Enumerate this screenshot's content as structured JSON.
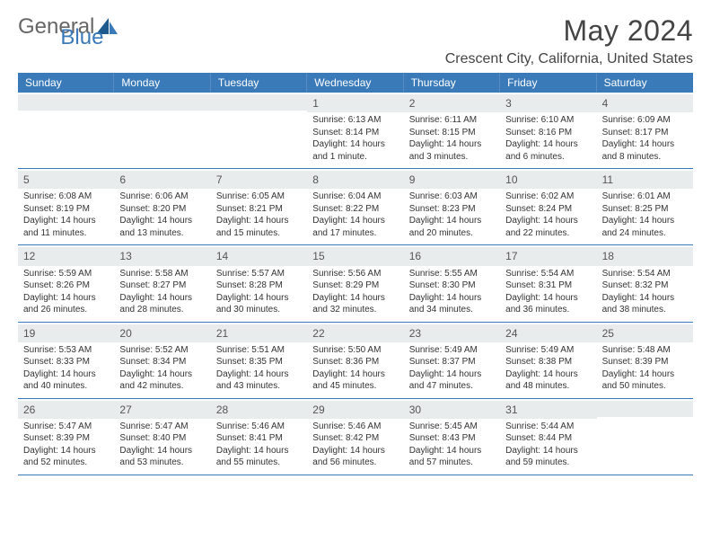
{
  "brand": {
    "part1": "General",
    "part2": "Blue"
  },
  "title": "May 2024",
  "location": "Crescent City, California, United States",
  "colors": {
    "header_bg": "#3a7ab8",
    "header_text": "#ffffff",
    "daynum_bg": "#e8eced",
    "text": "#333333",
    "border": "#3a7ab8"
  },
  "day_names": [
    "Sunday",
    "Monday",
    "Tuesday",
    "Wednesday",
    "Thursday",
    "Friday",
    "Saturday"
  ],
  "weeks": [
    [
      {
        "n": "",
        "sunrise": "",
        "sunset": "",
        "daylight": ""
      },
      {
        "n": "",
        "sunrise": "",
        "sunset": "",
        "daylight": ""
      },
      {
        "n": "",
        "sunrise": "",
        "sunset": "",
        "daylight": ""
      },
      {
        "n": "1",
        "sunrise": "Sunrise: 6:13 AM",
        "sunset": "Sunset: 8:14 PM",
        "daylight": "Daylight: 14 hours and 1 minute."
      },
      {
        "n": "2",
        "sunrise": "Sunrise: 6:11 AM",
        "sunset": "Sunset: 8:15 PM",
        "daylight": "Daylight: 14 hours and 3 minutes."
      },
      {
        "n": "3",
        "sunrise": "Sunrise: 6:10 AM",
        "sunset": "Sunset: 8:16 PM",
        "daylight": "Daylight: 14 hours and 6 minutes."
      },
      {
        "n": "4",
        "sunrise": "Sunrise: 6:09 AM",
        "sunset": "Sunset: 8:17 PM",
        "daylight": "Daylight: 14 hours and 8 minutes."
      }
    ],
    [
      {
        "n": "5",
        "sunrise": "Sunrise: 6:08 AM",
        "sunset": "Sunset: 8:19 PM",
        "daylight": "Daylight: 14 hours and 11 minutes."
      },
      {
        "n": "6",
        "sunrise": "Sunrise: 6:06 AM",
        "sunset": "Sunset: 8:20 PM",
        "daylight": "Daylight: 14 hours and 13 minutes."
      },
      {
        "n": "7",
        "sunrise": "Sunrise: 6:05 AM",
        "sunset": "Sunset: 8:21 PM",
        "daylight": "Daylight: 14 hours and 15 minutes."
      },
      {
        "n": "8",
        "sunrise": "Sunrise: 6:04 AM",
        "sunset": "Sunset: 8:22 PM",
        "daylight": "Daylight: 14 hours and 17 minutes."
      },
      {
        "n": "9",
        "sunrise": "Sunrise: 6:03 AM",
        "sunset": "Sunset: 8:23 PM",
        "daylight": "Daylight: 14 hours and 20 minutes."
      },
      {
        "n": "10",
        "sunrise": "Sunrise: 6:02 AM",
        "sunset": "Sunset: 8:24 PM",
        "daylight": "Daylight: 14 hours and 22 minutes."
      },
      {
        "n": "11",
        "sunrise": "Sunrise: 6:01 AM",
        "sunset": "Sunset: 8:25 PM",
        "daylight": "Daylight: 14 hours and 24 minutes."
      }
    ],
    [
      {
        "n": "12",
        "sunrise": "Sunrise: 5:59 AM",
        "sunset": "Sunset: 8:26 PM",
        "daylight": "Daylight: 14 hours and 26 minutes."
      },
      {
        "n": "13",
        "sunrise": "Sunrise: 5:58 AM",
        "sunset": "Sunset: 8:27 PM",
        "daylight": "Daylight: 14 hours and 28 minutes."
      },
      {
        "n": "14",
        "sunrise": "Sunrise: 5:57 AM",
        "sunset": "Sunset: 8:28 PM",
        "daylight": "Daylight: 14 hours and 30 minutes."
      },
      {
        "n": "15",
        "sunrise": "Sunrise: 5:56 AM",
        "sunset": "Sunset: 8:29 PM",
        "daylight": "Daylight: 14 hours and 32 minutes."
      },
      {
        "n": "16",
        "sunrise": "Sunrise: 5:55 AM",
        "sunset": "Sunset: 8:30 PM",
        "daylight": "Daylight: 14 hours and 34 minutes."
      },
      {
        "n": "17",
        "sunrise": "Sunrise: 5:54 AM",
        "sunset": "Sunset: 8:31 PM",
        "daylight": "Daylight: 14 hours and 36 minutes."
      },
      {
        "n": "18",
        "sunrise": "Sunrise: 5:54 AM",
        "sunset": "Sunset: 8:32 PM",
        "daylight": "Daylight: 14 hours and 38 minutes."
      }
    ],
    [
      {
        "n": "19",
        "sunrise": "Sunrise: 5:53 AM",
        "sunset": "Sunset: 8:33 PM",
        "daylight": "Daylight: 14 hours and 40 minutes."
      },
      {
        "n": "20",
        "sunrise": "Sunrise: 5:52 AM",
        "sunset": "Sunset: 8:34 PM",
        "daylight": "Daylight: 14 hours and 42 minutes."
      },
      {
        "n": "21",
        "sunrise": "Sunrise: 5:51 AM",
        "sunset": "Sunset: 8:35 PM",
        "daylight": "Daylight: 14 hours and 43 minutes."
      },
      {
        "n": "22",
        "sunrise": "Sunrise: 5:50 AM",
        "sunset": "Sunset: 8:36 PM",
        "daylight": "Daylight: 14 hours and 45 minutes."
      },
      {
        "n": "23",
        "sunrise": "Sunrise: 5:49 AM",
        "sunset": "Sunset: 8:37 PM",
        "daylight": "Daylight: 14 hours and 47 minutes."
      },
      {
        "n": "24",
        "sunrise": "Sunrise: 5:49 AM",
        "sunset": "Sunset: 8:38 PM",
        "daylight": "Daylight: 14 hours and 48 minutes."
      },
      {
        "n": "25",
        "sunrise": "Sunrise: 5:48 AM",
        "sunset": "Sunset: 8:39 PM",
        "daylight": "Daylight: 14 hours and 50 minutes."
      }
    ],
    [
      {
        "n": "26",
        "sunrise": "Sunrise: 5:47 AM",
        "sunset": "Sunset: 8:39 PM",
        "daylight": "Daylight: 14 hours and 52 minutes."
      },
      {
        "n": "27",
        "sunrise": "Sunrise: 5:47 AM",
        "sunset": "Sunset: 8:40 PM",
        "daylight": "Daylight: 14 hours and 53 minutes."
      },
      {
        "n": "28",
        "sunrise": "Sunrise: 5:46 AM",
        "sunset": "Sunset: 8:41 PM",
        "daylight": "Daylight: 14 hours and 55 minutes."
      },
      {
        "n": "29",
        "sunrise": "Sunrise: 5:46 AM",
        "sunset": "Sunset: 8:42 PM",
        "daylight": "Daylight: 14 hours and 56 minutes."
      },
      {
        "n": "30",
        "sunrise": "Sunrise: 5:45 AM",
        "sunset": "Sunset: 8:43 PM",
        "daylight": "Daylight: 14 hours and 57 minutes."
      },
      {
        "n": "31",
        "sunrise": "Sunrise: 5:44 AM",
        "sunset": "Sunset: 8:44 PM",
        "daylight": "Daylight: 14 hours and 59 minutes."
      },
      {
        "n": "",
        "sunrise": "",
        "sunset": "",
        "daylight": ""
      }
    ]
  ]
}
